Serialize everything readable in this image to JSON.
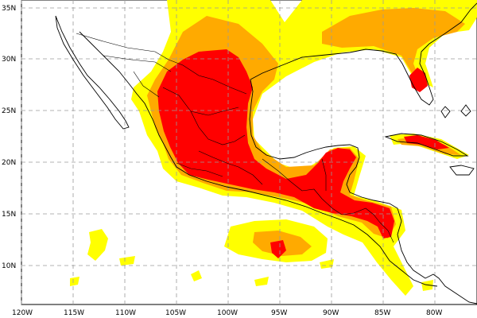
{
  "map": {
    "lat_labels": [
      "35N",
      "30N",
      "25N",
      "20N",
      "15N",
      "10N"
    ],
    "lon_labels": [
      "120W",
      "115W",
      "110W",
      "105W",
      "100W",
      "95W",
      "90W",
      "85W",
      "80W"
    ],
    "colors": {
      "level_low": "#ffff00",
      "level_mid": "#ffaa00",
      "level_high": "#ff0000",
      "land_border": "#000000",
      "grid": "#9a9a9a",
      "background": "#ffffff"
    }
  }
}
